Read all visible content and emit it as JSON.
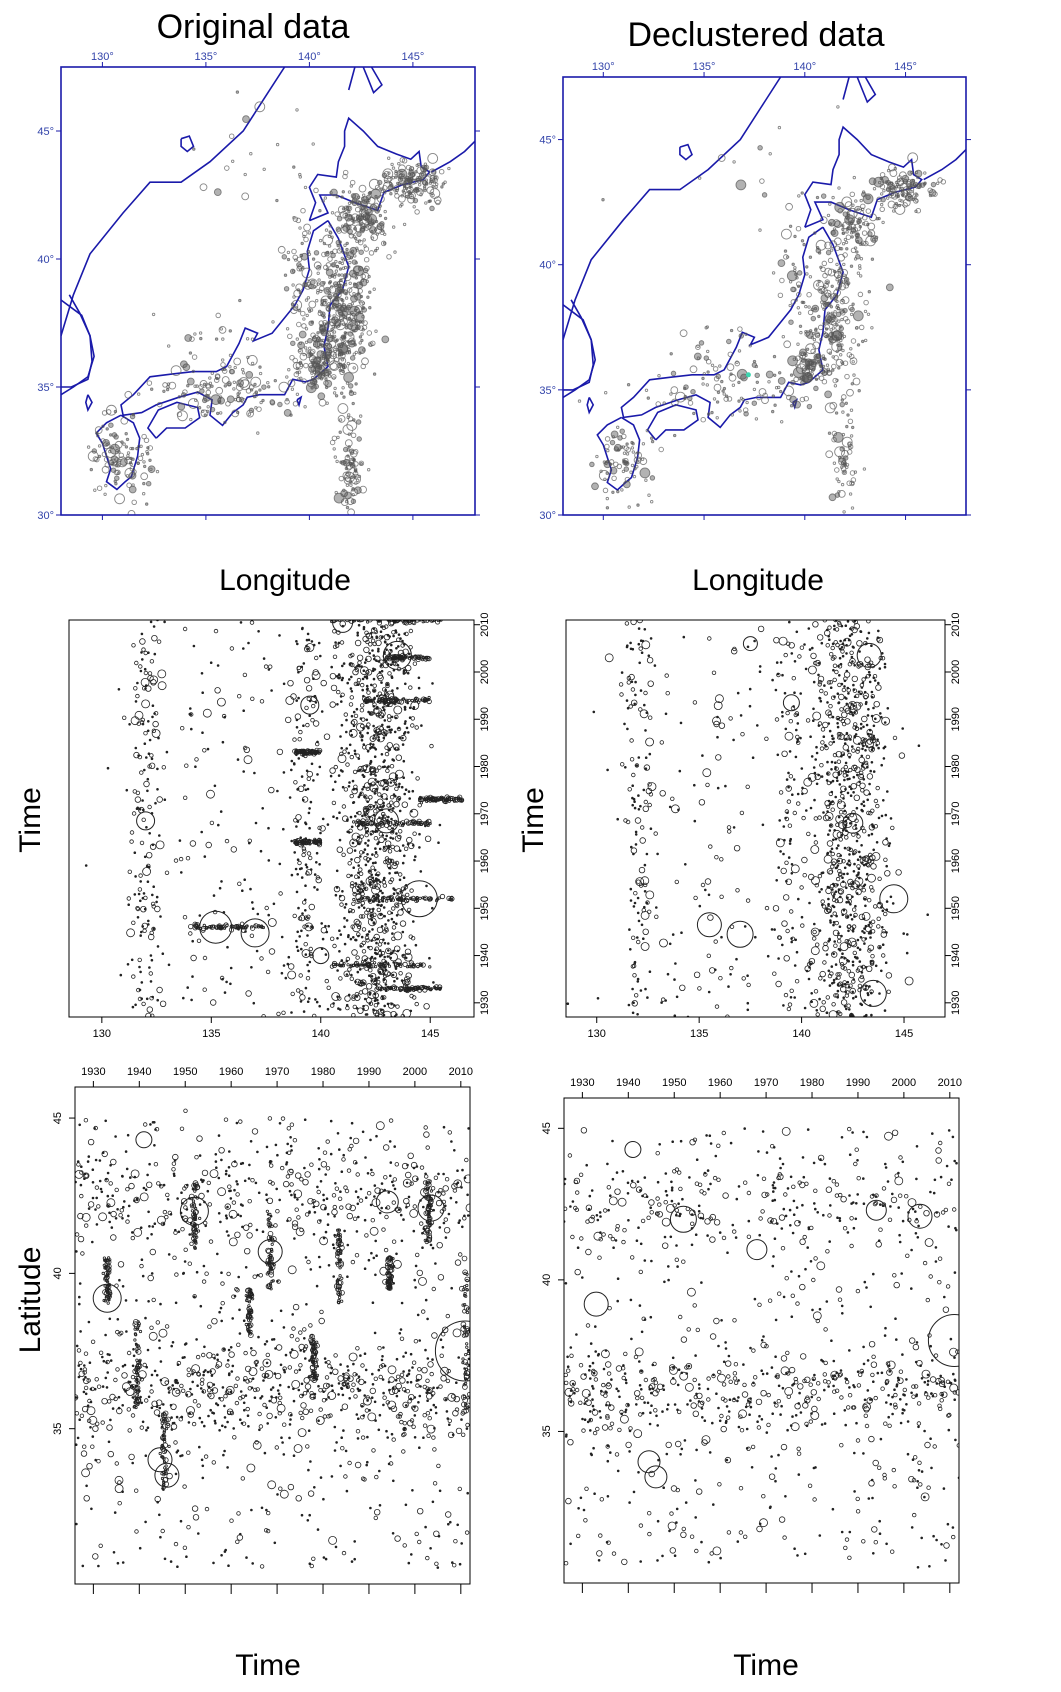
{
  "figure": {
    "titles": {
      "left": "Original data",
      "right": "Declustered data"
    },
    "axis_labels": {
      "map_row_x": "Longitude",
      "lon_time_y": "Time",
      "lat_time_y": "Latitude",
      "lat_time_x": "Time"
    }
  },
  "colors": {
    "coastline": "#1a1aaa",
    "map_tick_label": "#3344aa",
    "map_point": "#555555",
    "scatter_point": "#222222",
    "declustered_highlight": "#3dd6b0"
  },
  "chart_data": [
    {
      "type": "scatter",
      "id": "original-map",
      "title": "Original data",
      "xlabel": "Longitude",
      "ylabel": "",
      "xlim": [
        128,
        148
      ],
      "ylim": [
        30,
        47.5
      ],
      "x_ticks": [
        "130°",
        "135°",
        "140°",
        "145°"
      ],
      "y_ticks": [
        "30°",
        "35°",
        "40°",
        "45°"
      ],
      "grid": false,
      "note": "Earthquake epicentres (dense catalogue) over a coastline map",
      "clusters": [
        {
          "lon": 141.5,
          "lat": 38.0,
          "spread": [
            1.3,
            2.6
          ],
          "n": 420
        },
        {
          "lon": 142.5,
          "lat": 41.5,
          "spread": [
            1.2,
            1.3
          ],
          "n": 160
        },
        {
          "lon": 145.0,
          "lat": 43.0,
          "spread": [
            1.4,
            0.7
          ],
          "n": 170
        },
        {
          "lon": 140.4,
          "lat": 36.0,
          "spread": [
            0.8,
            0.9
          ],
          "n": 110
        },
        {
          "lon": 142.0,
          "lat": 32.0,
          "spread": [
            0.6,
            1.6
          ],
          "n": 90
        },
        {
          "lon": 136.0,
          "lat": 34.8,
          "spread": [
            3.5,
            0.9
          ],
          "n": 130
        },
        {
          "lon": 131.0,
          "lat": 32.2,
          "spread": [
            1.3,
            1.2
          ],
          "n": 110
        },
        {
          "lon": 139.5,
          "lat": 39.5,
          "spread": [
            0.7,
            2.2
          ],
          "n": 60
        },
        {
          "lon": 135.5,
          "lat": 36.5,
          "spread": [
            2.5,
            1.2
          ],
          "n": 40
        },
        {
          "lon": 138.0,
          "lat": 44.0,
          "spread": [
            4.0,
            2.5
          ],
          "n": 25
        }
      ]
    },
    {
      "type": "scatter",
      "id": "declustered-map",
      "title": "Declustered data",
      "xlabel": "Longitude",
      "ylabel": "",
      "xlim": [
        128,
        148
      ],
      "ylim": [
        30,
        47.5
      ],
      "x_ticks": [
        "130°",
        "135°",
        "140°",
        "145°"
      ],
      "y_ticks": [
        "30°",
        "35°",
        "40°",
        "45°"
      ],
      "grid": false,
      "note": "Declustered earthquake epicentres over a coastline map",
      "clusters": [
        {
          "lon": 141.5,
          "lat": 38.0,
          "spread": [
            1.3,
            2.6
          ],
          "n": 230
        },
        {
          "lon": 142.5,
          "lat": 41.5,
          "spread": [
            1.2,
            1.3
          ],
          "n": 110
        },
        {
          "lon": 145.0,
          "lat": 43.0,
          "spread": [
            1.4,
            0.7
          ],
          "n": 110
        },
        {
          "lon": 140.4,
          "lat": 36.0,
          "spread": [
            0.8,
            0.9
          ],
          "n": 70
        },
        {
          "lon": 142.0,
          "lat": 32.0,
          "spread": [
            0.6,
            1.6
          ],
          "n": 60
        },
        {
          "lon": 136.0,
          "lat": 34.8,
          "spread": [
            3.5,
            0.9
          ],
          "n": 90
        },
        {
          "lon": 131.0,
          "lat": 32.2,
          "spread": [
            1.3,
            1.2
          ],
          "n": 80
        },
        {
          "lon": 139.5,
          "lat": 39.5,
          "spread": [
            0.7,
            2.2
          ],
          "n": 40
        },
        {
          "lon": 135.5,
          "lat": 36.5,
          "spread": [
            2.5,
            1.2
          ],
          "n": 30
        },
        {
          "lon": 138.0,
          "lat": 44.0,
          "spread": [
            4.0,
            2.5
          ],
          "n": 20
        }
      ]
    },
    {
      "type": "scatter",
      "id": "original-lon-time",
      "xlabel": "",
      "ylabel": "Time",
      "xlim": [
        128.5,
        147
      ],
      "ylim": [
        1927,
        2011
      ],
      "x_ticks": [
        130,
        135,
        140,
        145
      ],
      "y_ticks": [
        1930,
        1940,
        1950,
        1960,
        1970,
        1980,
        1990,
        2000,
        2010
      ],
      "grid": false,
      "note": "Longitude vs time; aftershock sequences appear as horizontal streaks",
      "bands": [
        {
          "lon": 142.5,
          "spread": 1.6,
          "n": 1100
        },
        {
          "lon": 139.3,
          "spread": 0.6,
          "n": 160
        },
        {
          "lon": 132.0,
          "spread": 0.7,
          "n": 170
        },
        {
          "lon": 136.0,
          "spread": 4.0,
          "n": 170
        }
      ],
      "streaks": [
        {
          "time": 1938.0,
          "lon": [
            140.5,
            145.0
          ]
        },
        {
          "time": 1933.0,
          "lon": [
            142.5,
            145.5
          ]
        },
        {
          "time": 1946.0,
          "lon": [
            134.0,
            137.5
          ]
        },
        {
          "time": 1952.0,
          "lon": [
            141.5,
            146.0
          ]
        },
        {
          "time": 1968.0,
          "lon": [
            141.5,
            145.0
          ]
        },
        {
          "time": 1973.0,
          "lon": [
            144.5,
            146.5
          ]
        },
        {
          "time": 1983.0,
          "lon": [
            138.8,
            140.0
          ]
        },
        {
          "time": 1994.0,
          "lon": [
            142.0,
            145.0
          ]
        },
        {
          "time": 2003.0,
          "lon": [
            143.0,
            145.0
          ]
        },
        {
          "time": 2011.0,
          "lon": [
            140.5,
            145.5
          ]
        },
        {
          "time": 1964.0,
          "lon": [
            138.8,
            140.0
          ]
        }
      ],
      "large_events": [
        {
          "lon": 135.2,
          "time": 1946.0,
          "size": 16
        },
        {
          "lon": 137.0,
          "time": 1944.8,
          "size": 14
        },
        {
          "lon": 144.5,
          "time": 1952.0,
          "size": 18
        },
        {
          "lon": 143.5,
          "time": 2003.5,
          "size": 14
        },
        {
          "lon": 143.0,
          "time": 1968.5,
          "size": 12
        },
        {
          "lon": 132.0,
          "time": 1968.5,
          "size": 9
        },
        {
          "lon": 139.5,
          "time": 1993.0,
          "size": 9
        },
        {
          "lon": 140.0,
          "time": 1940.0,
          "size": 8
        },
        {
          "lon": 141.0,
          "time": 2010.5,
          "size": 10
        }
      ]
    },
    {
      "type": "scatter",
      "id": "declustered-lon-time",
      "xlabel": "",
      "ylabel": "Time",
      "xlim": [
        128.5,
        147
      ],
      "ylim": [
        1927,
        2011
      ],
      "x_ticks": [
        130,
        135,
        140,
        145
      ],
      "y_ticks": [
        1930,
        1940,
        1950,
        1960,
        1970,
        1980,
        1990,
        2000,
        2010
      ],
      "grid": false,
      "note": "Longitude vs time after declustering; streaks removed",
      "bands": [
        {
          "lon": 142.3,
          "spread": 1.7,
          "n": 900
        },
        {
          "lon": 139.3,
          "spread": 0.6,
          "n": 90
        },
        {
          "lon": 132.0,
          "spread": 0.7,
          "n": 140
        },
        {
          "lon": 136.0,
          "spread": 4.0,
          "n": 150
        }
      ],
      "streaks": [],
      "large_events": [
        {
          "lon": 135.5,
          "time": 1946.5,
          "size": 12
        },
        {
          "lon": 137.0,
          "time": 1944.5,
          "size": 13
        },
        {
          "lon": 144.5,
          "time": 1952.0,
          "size": 14
        },
        {
          "lon": 143.3,
          "time": 2003.5,
          "size": 12
        },
        {
          "lon": 143.5,
          "time": 1932.0,
          "size": 13
        },
        {
          "lon": 142.5,
          "time": 1968.0,
          "size": 10
        },
        {
          "lon": 139.5,
          "time": 1993.5,
          "size": 8
        },
        {
          "lon": 137.5,
          "time": 2006.0,
          "size": 7
        }
      ]
    },
    {
      "type": "scatter",
      "id": "original-lat-time",
      "xlabel": "Time",
      "ylabel": "Latitude",
      "xlim": [
        1926,
        2012
      ],
      "ylim": [
        30,
        46
      ],
      "x_ticks": [
        1930,
        1940,
        1950,
        1960,
        1970,
        1980,
        1990,
        2000,
        2010
      ],
      "y_ticks": [
        35,
        40,
        45
      ],
      "grid": false,
      "note": "Time vs latitude; aftershock sequences appear as vertical streaks",
      "streaks": [
        {
          "time": 1939.5,
          "lat": [
            35.5,
            38.5
          ]
        },
        {
          "time": 1945.5,
          "lat": [
            33.0,
            35.5
          ]
        },
        {
          "time": 1952.0,
          "lat": [
            40.8,
            43.0
          ]
        },
        {
          "time": 1968.5,
          "lat": [
            39.5,
            42.0
          ]
        },
        {
          "time": 1983.5,
          "lat": [
            39.0,
            41.5
          ]
        },
        {
          "time": 1978.0,
          "lat": [
            36.5,
            38.0
          ]
        },
        {
          "time": 1964.0,
          "lat": [
            38.0,
            39.5
          ]
        },
        {
          "time": 1994.5,
          "lat": [
            39.5,
            40.5
          ]
        },
        {
          "time": 2003.0,
          "lat": [
            41.0,
            43.0
          ]
        },
        {
          "time": 2011.0,
          "lat": [
            35.5,
            40.5
          ]
        },
        {
          "time": 1933.0,
          "lat": [
            39.0,
            40.5
          ]
        }
      ],
      "large_events": [
        {
          "time": 1933.0,
          "lat": 39.2,
          "size": 14
        },
        {
          "time": 1944.5,
          "lat": 34.0,
          "size": 12
        },
        {
          "time": 1946.0,
          "lat": 33.5,
          "size": 12
        },
        {
          "time": 1952.0,
          "lat": 42.0,
          "size": 14
        },
        {
          "time": 1968.5,
          "lat": 40.7,
          "size": 12
        },
        {
          "time": 1994.0,
          "lat": 42.3,
          "size": 11
        },
        {
          "time": 2003.5,
          "lat": 42.1,
          "size": 13
        },
        {
          "time": 1941.0,
          "lat": 44.3,
          "size": 8
        },
        {
          "time": 2011.0,
          "lat": 37.5,
          "size": 30
        }
      ]
    },
    {
      "type": "scatter",
      "id": "declustered-lat-time",
      "xlabel": "Time",
      "ylabel": "",
      "xlim": [
        1926,
        2012
      ],
      "ylim": [
        30,
        46
      ],
      "x_ticks": [
        1930,
        1940,
        1950,
        1960,
        1970,
        1980,
        1990,
        2000,
        2010
      ],
      "y_ticks": [
        35,
        40,
        45
      ],
      "grid": false,
      "note": "Time vs latitude after declustering; streaks removed",
      "streaks": [],
      "large_events": [
        {
          "time": 1933.0,
          "lat": 39.2,
          "size": 12
        },
        {
          "time": 1944.5,
          "lat": 34.0,
          "size": 11
        },
        {
          "time": 1946.0,
          "lat": 33.5,
          "size": 11
        },
        {
          "time": 1952.0,
          "lat": 42.0,
          "size": 13
        },
        {
          "time": 1968.0,
          "lat": 41.0,
          "size": 10
        },
        {
          "time": 1994.0,
          "lat": 42.3,
          "size": 10
        },
        {
          "time": 2003.5,
          "lat": 42.1,
          "size": 12
        },
        {
          "time": 1941.0,
          "lat": 44.3,
          "size": 8
        },
        {
          "time": 2011.0,
          "lat": 38.0,
          "size": 26
        }
      ]
    }
  ]
}
